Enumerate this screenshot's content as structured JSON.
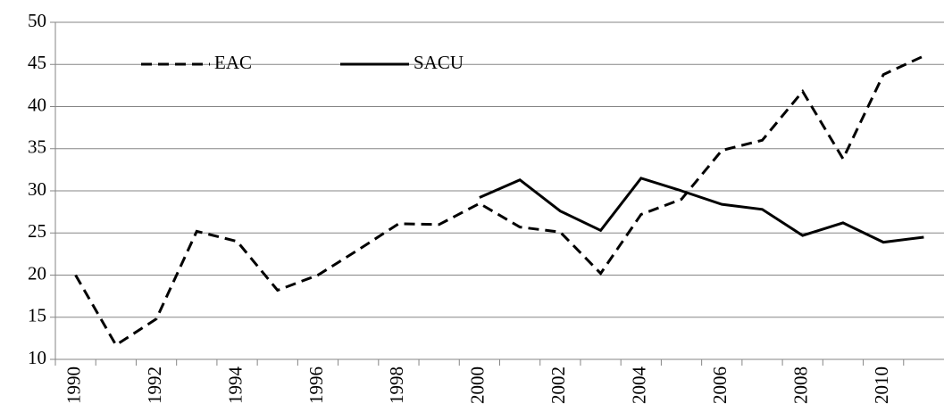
{
  "chart_data": {
    "type": "line",
    "categories": [
      "1990",
      null,
      "1992",
      null,
      "1994",
      null,
      "1996",
      null,
      "1998",
      null,
      "2000",
      null,
      "2002",
      null,
      "2004",
      null,
      "2006",
      null,
      "2008",
      null,
      "2010",
      null
    ],
    "series": [
      {
        "name": "EAC",
        "color": "#000000",
        "line_style": "dashed",
        "values": [
          20,
          11.7,
          14.8,
          25.2,
          24,
          18.2,
          20,
          23,
          26.1,
          26,
          28.5,
          25.7,
          25.1,
          20.2,
          27.2,
          29,
          34.8,
          36,
          41.8,
          33.8,
          43.8,
          46
        ]
      },
      {
        "name": "SACU",
        "color": "#000000",
        "line_style": "solid",
        "values": [
          null,
          null,
          null,
          null,
          null,
          null,
          null,
          null,
          null,
          null,
          29.2,
          31.3,
          27.6,
          25.3,
          31.5,
          30,
          28.4,
          27.8,
          24.7,
          26.2,
          23.9,
          24.5
        ]
      }
    ],
    "ylim": [
      10,
      50
    ],
    "yticks": [
      10,
      15,
      20,
      25,
      30,
      35,
      40,
      45,
      50
    ],
    "grid": true,
    "legend": "upper left"
  }
}
